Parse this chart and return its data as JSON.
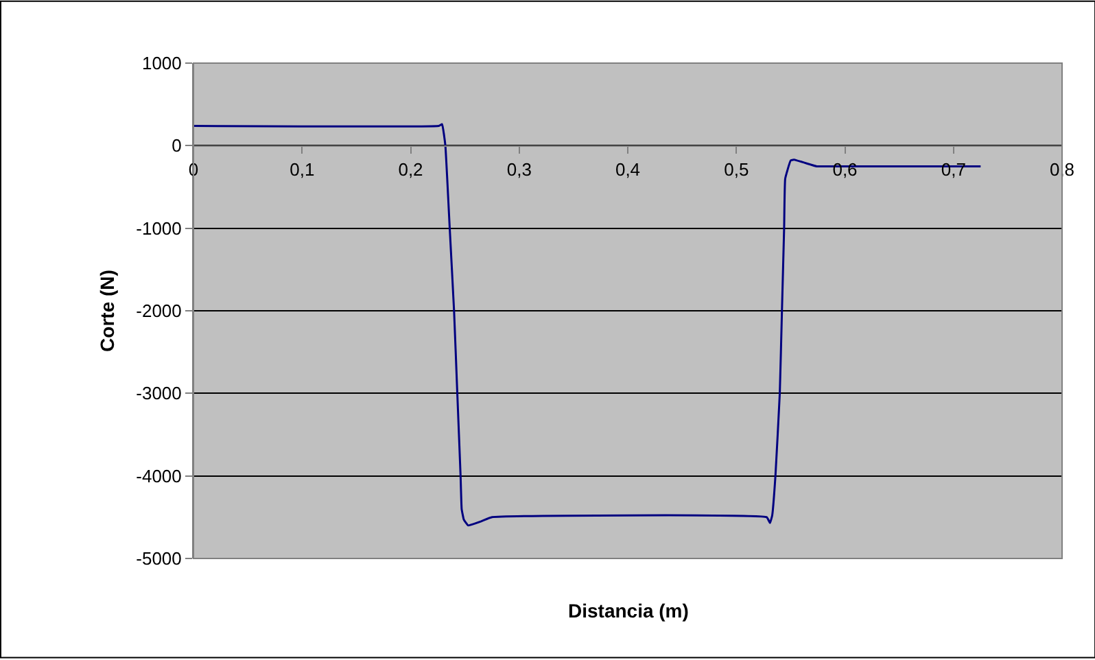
{
  "chart_data": {
    "type": "line",
    "xlabel": "Distancia (m)",
    "ylabel": "Corte (N)",
    "xlim": [
      0,
      0.8
    ],
    "ylim": [
      -5000,
      1000
    ],
    "xticks": [
      0,
      {
        "value": 0.1,
        "label": "0,1"
      },
      {
        "value": 0.2,
        "label": "0,2"
      },
      {
        "value": 0.3,
        "label": "0,3"
      },
      {
        "value": 0.4,
        "label": "0,4"
      },
      {
        "value": 0.5,
        "label": "0,5"
      },
      {
        "value": 0.6,
        "label": "0,6"
      },
      {
        "value": 0.7,
        "label": "0,7"
      },
      {
        "value": 0.8,
        "label": "0,8"
      }
    ],
    "yticks": [
      1000,
      0,
      -1000,
      -2000,
      -3000,
      -4000,
      -5000
    ],
    "grid": "y",
    "marker": "none",
    "line_style": "solid",
    "series": [
      {
        "color": "#000080",
        "x": [
          0,
          0.226,
          0.229,
          0.232,
          0.236,
          0.24,
          0.243,
          0.246,
          0.247,
          0.249,
          0.253,
          0.265,
          0.275,
          0.528,
          0.531,
          0.533,
          0.536,
          0.54,
          0.542,
          0.544,
          0.545,
          0.55,
          0.553,
          0.574,
          0.579,
          0.725
        ],
        "values": [
          240,
          240,
          260,
          0,
          -1000,
          -2000,
          -3000,
          -4000,
          -4400,
          -4530,
          -4600,
          -4550,
          -4500,
          -4500,
          -4570,
          -4480,
          -4000,
          -3000,
          -2000,
          -1000,
          -400,
          -180,
          -170,
          -250,
          -250,
          -250
        ]
      }
    ]
  }
}
